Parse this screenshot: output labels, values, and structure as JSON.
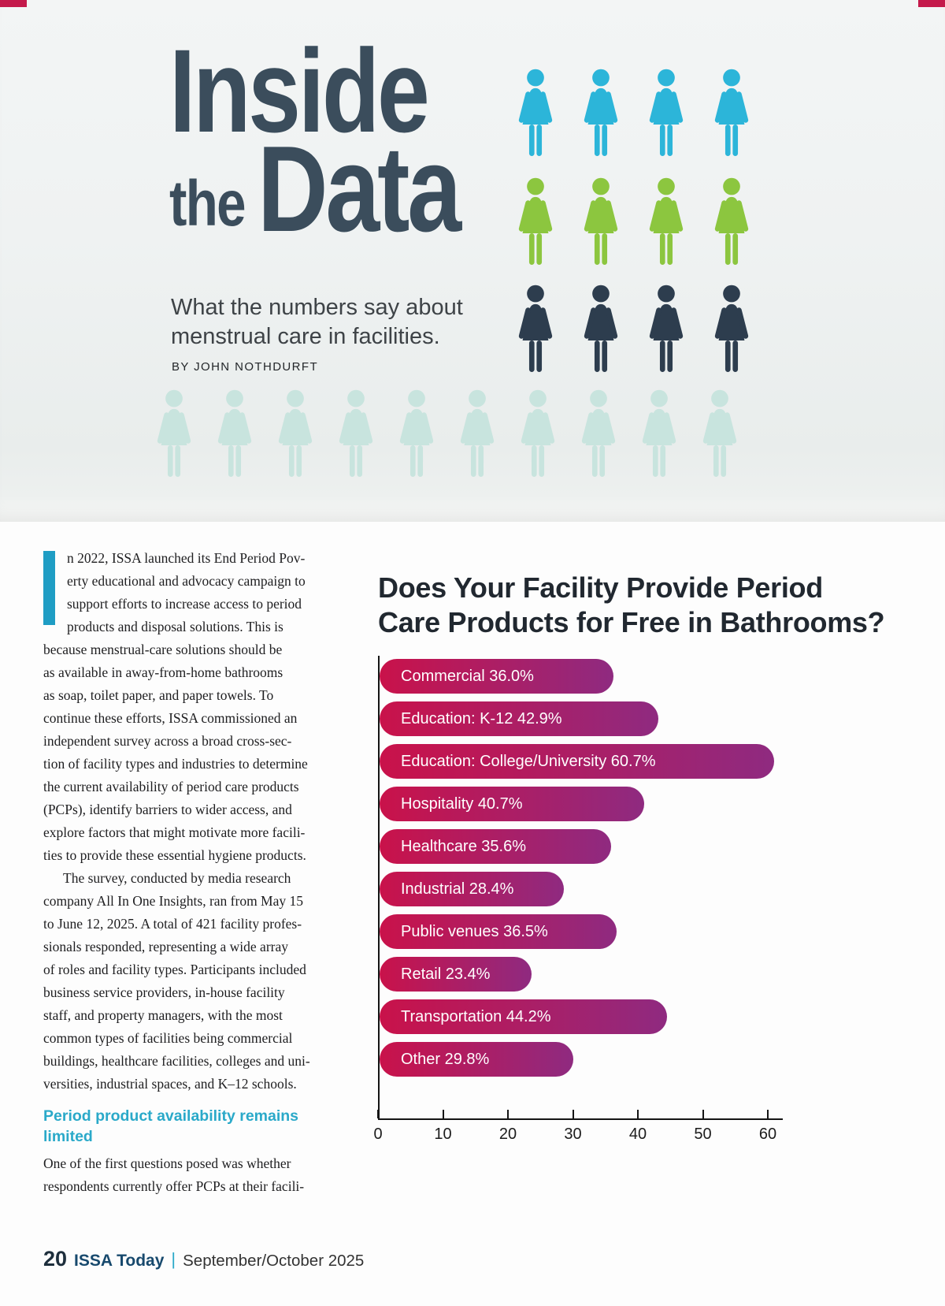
{
  "page": {
    "colors": {
      "title": "#3b4d5c",
      "accent_teal": "#2aa9c9",
      "dropcap": "#1f9dc4",
      "top_mark": "#c41a4b",
      "footer_navy": "#17496d"
    }
  },
  "hero": {
    "title_line1": "Inside",
    "title_line2_small": "the",
    "title_line2_large": "Data",
    "subtitle": "What the numbers say about\nmenstrual care in facilities.",
    "byline": "BY JOHN NOTHDURFT",
    "icon_rows": [
      {
        "name": "cyan",
        "count": 4,
        "color": "#2cb5d9"
      },
      {
        "name": "green",
        "count": 4,
        "color": "#8cc63f"
      },
      {
        "name": "navy",
        "count": 4,
        "color": "#2d3d4e"
      },
      {
        "name": "mint",
        "count": 10,
        "color": "#c8e4de"
      }
    ]
  },
  "article": {
    "p1": "n 2022, ISSA launched its End Period Pov-\nerty educational and advocacy campaign to\nsupport efforts to increase access to period\nproducts and disposal solutions. This is\nbecause menstrual-care solutions should be\nas available in away-from-home bathrooms\nas soap, toilet paper, and paper towels. To\ncontinue these efforts, ISSA commissioned an\nindependent survey across a broad cross-sec-\ntion of facility types and industries to determine\nthe current availability of period care products\n(PCPs), identify barriers to wider access, and\nexplore factors that might motivate more facili-\nties to provide these essential hygiene products.",
    "p2": "The survey, conducted by media research\ncompany All In One Insights, ran from May 15\nto June 12, 2025. A total of 421 facility profes-\nsionals responded, representing a wide array\nof roles and facility types. Participants included\nbusiness service providers, in-house facility\nstaff, and property managers, with the most\ncommon types of facilities being commercial\nbuildings, healthcare facilities, colleges and uni-\nversities, industrial spaces, and K–12 schools.",
    "heading": "Period product availability remains\nlimited",
    "p3": "One of the first questions posed was whether\nrespondents currently offer PCPs at their facili-"
  },
  "chart": {
    "title_display": "Does Your Facility Provide Period\nCare Products for Free in Bathrooms?"
  },
  "chart_data": {
    "type": "bar",
    "orientation": "horizontal",
    "title": "Does Your Facility Provide Period Care Products for Free in Bathrooms?",
    "categories": [
      "Commercial",
      "Education: K-12",
      "Education: College/University",
      "Hospitality",
      "Healthcare",
      "Industrial",
      "Public venues",
      "Retail",
      "Transportation",
      "Other"
    ],
    "values": [
      36.0,
      42.9,
      60.7,
      40.7,
      35.6,
      28.4,
      36.5,
      23.4,
      44.2,
      29.8
    ],
    "value_suffix": "%",
    "xlim": [
      0,
      60
    ],
    "xticks": [
      0,
      10,
      20,
      30,
      40,
      50,
      60
    ],
    "grid": false,
    "bar_gradient": [
      "#c9124a",
      "#8f2a80"
    ],
    "bar_label_color": "#ffffff",
    "axis_color": "#151515"
  },
  "footer": {
    "page_number": "20",
    "publication": "ISSA Today",
    "separator": "|",
    "issue": "September/October 2025"
  }
}
